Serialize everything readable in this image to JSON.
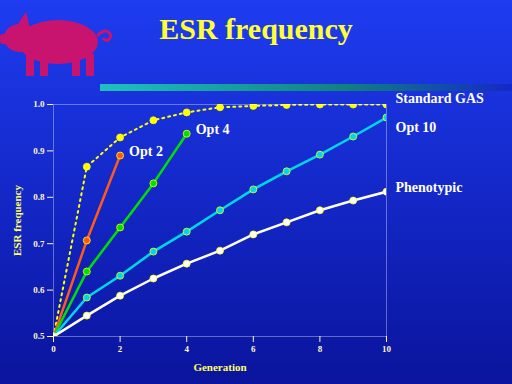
{
  "chart_data": {
    "type": "line",
    "title": "ESR frequency",
    "x_label": "Generation",
    "y_label": "ESR frequency",
    "x": [
      0,
      1,
      2,
      3,
      4,
      5,
      6,
      7,
      8,
      9,
      10
    ],
    "series": [
      {
        "name": "Standard GAS",
        "color": "#ffff00",
        "line_style": "dotted",
        "marker": "circle",
        "values": [
          0.5,
          0.866,
          0.929,
          0.966,
          0.983,
          0.994,
          0.997,
          0.999,
          1.0,
          1.0,
          1.0
        ]
      },
      {
        "name": "Opt 2",
        "color": "#ff5a1a",
        "line_style": "solid",
        "marker": "circle",
        "values": [
          0.5,
          0.707,
          0.89,
          null,
          null,
          null,
          null,
          null,
          null,
          null,
          null
        ]
      },
      {
        "name": "Opt 4",
        "color": "#00e000",
        "line_style": "solid",
        "marker": "circle",
        "values": [
          0.5,
          0.64,
          0.735,
          0.83,
          0.937,
          null,
          null,
          null,
          null,
          null,
          null
        ]
      },
      {
        "name": "Opt 10",
        "color": "#00d8e8",
        "line_style": "solid",
        "marker": "circle",
        "values": [
          0.5,
          0.584,
          0.631,
          0.683,
          0.726,
          0.772,
          0.817,
          0.856,
          0.892,
          0.931,
          0.972
        ]
      },
      {
        "name": "Phenotypic",
        "color": "#ffffff",
        "line_style": "solid",
        "marker": "circle",
        "values": [
          0.5,
          0.545,
          0.588,
          0.625,
          0.657,
          0.685,
          0.72,
          0.746,
          0.772,
          0.793,
          0.812
        ]
      }
    ],
    "xlim": [
      0,
      10
    ],
    "xticks": [
      0,
      2,
      4,
      6,
      8,
      10
    ],
    "ylim": [
      0.5,
      1
    ],
    "yticks": [
      0.5,
      0.6,
      0.7,
      0.8,
      0.9,
      {
        "value": 1,
        "label": "1.0"
      }
    ],
    "grid": false
  }
}
